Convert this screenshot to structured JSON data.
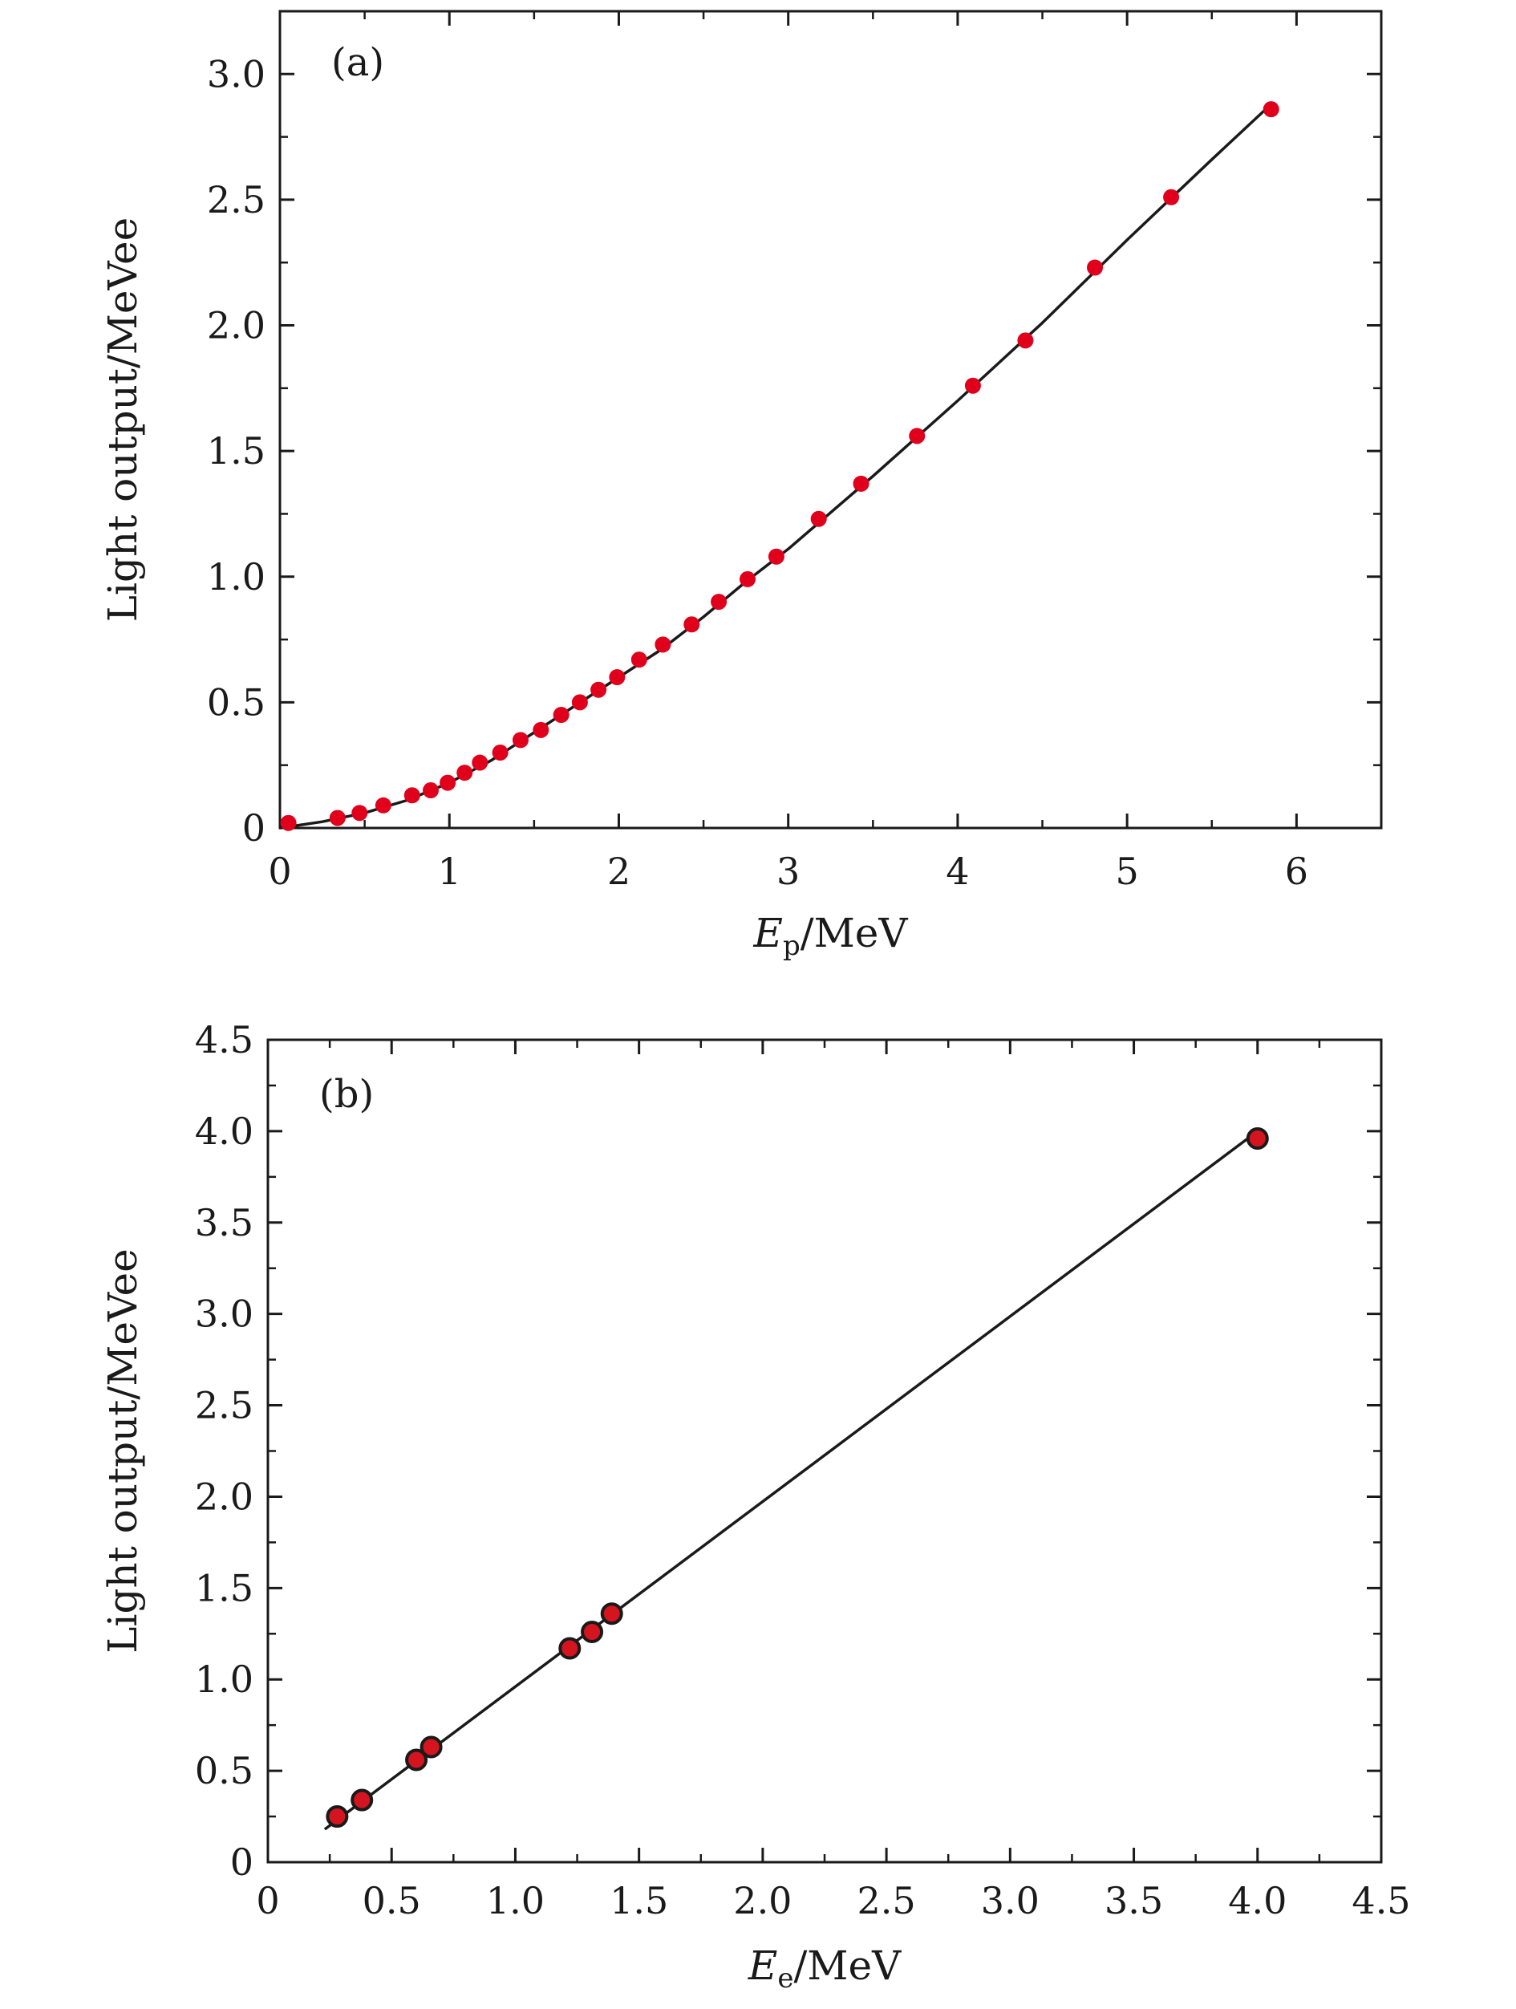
{
  "chart_data": [
    {
      "type": "scatter",
      "panel_label": "(a)",
      "xlabel": {
        "symbol": "E",
        "subscript": "p",
        "unit": "/MeV"
      },
      "ylabel": "Light output/MeVee",
      "xlim": [
        0,
        6.5
      ],
      "ylim": [
        0,
        3.25
      ],
      "xticks": [
        0,
        1,
        2,
        3,
        4,
        5,
        6
      ],
      "xtick_labels": [
        "0",
        "1",
        "2",
        "3",
        "4",
        "5",
        "6"
      ],
      "yticks": [
        0,
        0.5,
        1.0,
        1.5,
        2.0,
        2.5,
        3.0
      ],
      "ytick_labels": [
        "0",
        "0.5",
        "1.0",
        "1.5",
        "2.0",
        "2.5",
        "3.0"
      ],
      "marker_color": "#e0001b",
      "marker_edge": "none",
      "line_color": "#1a1a1a",
      "points": {
        "x": [
          0.05,
          0.34,
          0.47,
          0.61,
          0.78,
          0.89,
          0.99,
          1.09,
          1.18,
          1.3,
          1.42,
          1.54,
          1.66,
          1.77,
          1.88,
          1.99,
          2.12,
          2.26,
          2.43,
          2.59,
          2.76,
          2.93,
          3.18,
          3.43,
          3.76,
          4.09,
          4.4,
          4.81,
          5.26,
          5.85
        ],
        "y": [
          0.02,
          0.04,
          0.06,
          0.09,
          0.13,
          0.15,
          0.18,
          0.22,
          0.26,
          0.3,
          0.35,
          0.39,
          0.45,
          0.5,
          0.55,
          0.6,
          0.67,
          0.73,
          0.81,
          0.9,
          0.99,
          1.08,
          1.23,
          1.37,
          1.56,
          1.76,
          1.94,
          2.23,
          2.51,
          2.86
        ]
      },
      "fit_curve": {
        "x": [
          0.0,
          0.25,
          0.5,
          0.75,
          1.0,
          1.25,
          1.5,
          1.75,
          2.0,
          2.25,
          2.5,
          2.75,
          3.0,
          3.5,
          4.0,
          4.5,
          5.0,
          5.5,
          5.85
        ],
        "y": [
          0.0,
          0.025,
          0.06,
          0.11,
          0.18,
          0.27,
          0.38,
          0.49,
          0.6,
          0.71,
          0.84,
          0.98,
          1.11,
          1.4,
          1.7,
          2.01,
          2.34,
          2.66,
          2.88
        ]
      }
    },
    {
      "type": "scatter",
      "panel_label": "(b)",
      "xlabel": {
        "symbol": "E",
        "subscript": "e",
        "unit": "/MeV"
      },
      "ylabel": "Light output/MeVee",
      "xlim": [
        0,
        4.5
      ],
      "ylim": [
        0,
        4.5
      ],
      "xticks": [
        0,
        0.5,
        1.0,
        1.5,
        2.0,
        2.5,
        3.0,
        3.5,
        4.0,
        4.5
      ],
      "xtick_labels": [
        "0",
        "0.5",
        "1.0",
        "1.5",
        "2.0",
        "2.5",
        "3.0",
        "3.5",
        "4.0",
        "4.5"
      ],
      "yticks": [
        0,
        0.5,
        1.0,
        1.5,
        2.0,
        2.5,
        3.0,
        3.5,
        4.0,
        4.5
      ],
      "ytick_labels": [
        "0",
        "0.5",
        "1.0",
        "1.5",
        "2.0",
        "2.5",
        "3.0",
        "3.5",
        "4.0",
        "4.5"
      ],
      "marker_color": "#d4141f",
      "marker_edge": "#1a1a1a",
      "line_color": "#1a1a1a",
      "points": {
        "x": [
          0.28,
          0.38,
          0.6,
          0.66,
          1.22,
          1.31,
          1.39,
          4.0
        ],
        "y": [
          0.25,
          0.34,
          0.56,
          0.63,
          1.17,
          1.26,
          1.36,
          3.96
        ]
      },
      "fit_line": {
        "x": [
          0.23,
          4.0
        ],
        "y": [
          0.18,
          4.0
        ]
      }
    }
  ]
}
